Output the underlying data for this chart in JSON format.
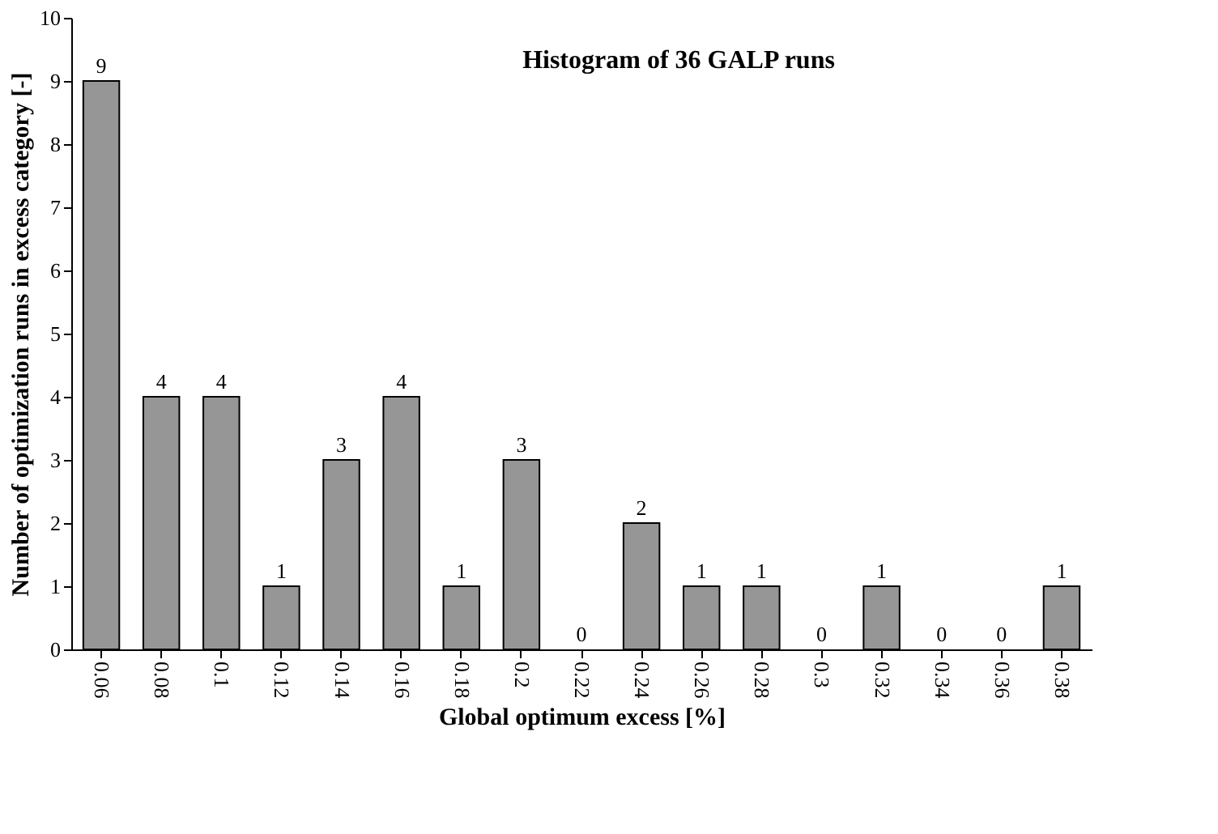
{
  "chart_data": {
    "type": "bar",
    "title": "Histogram of 36 GALP runs",
    "xlabel": "Global optimum excess [%]",
    "ylabel": "Number of optimization runs in excess category [-]",
    "categories": [
      "0.06",
      "0.08",
      "0.1",
      "0.12",
      "0.14",
      "0.16",
      "0.18",
      "0.2",
      "0.22",
      "0.24",
      "0.26",
      "0.28",
      "0.3",
      "0.32",
      "0.34",
      "0.36",
      "0.38"
    ],
    "values": [
      9,
      4,
      4,
      1,
      3,
      4,
      1,
      3,
      0,
      2,
      1,
      1,
      0,
      1,
      0,
      0,
      1
    ],
    "color": "#969696",
    "ylim": [
      0,
      10
    ],
    "yticks": [
      0,
      1,
      2,
      3,
      4,
      5,
      6,
      7,
      8,
      9,
      10
    ],
    "grid": false,
    "data_labels": true
  }
}
